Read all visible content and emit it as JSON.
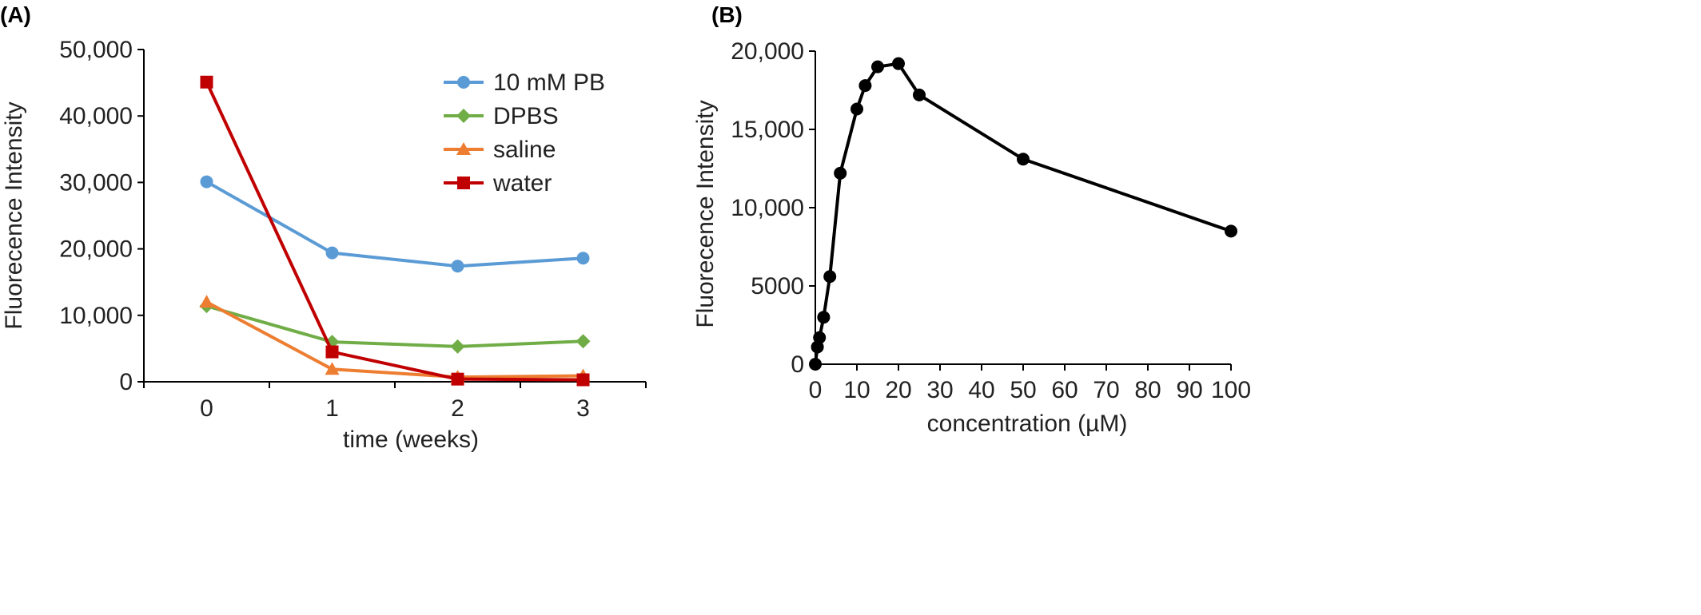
{
  "chart_data": [
    {
      "panel_label": "(A)",
      "type": "line",
      "xlabel": "time (weeks)",
      "ylabel": "Fluorecence Intensity",
      "x": [
        0,
        1,
        2,
        3
      ],
      "x_ticks": [
        "0",
        "1",
        "2",
        "3"
      ],
      "xlim": [
        -0.5,
        3.5
      ],
      "ylim": [
        0,
        50000
      ],
      "y_ticks": [
        "0",
        "10,000",
        "20,000",
        "30,000",
        "40,000",
        "50,000"
      ],
      "y_tick_values": [
        0,
        10000,
        20000,
        30000,
        40000,
        50000
      ],
      "grid": false,
      "legend_position": "top-right",
      "series": [
        {
          "name": "10 mM PB",
          "color": "#5b9bd5",
          "marker": "circle",
          "values": [
            30100,
            19400,
            17400,
            18600
          ]
        },
        {
          "name": "DPBS",
          "color": "#70ad47",
          "marker": "diamond",
          "values": [
            11400,
            6000,
            5300,
            6100
          ]
        },
        {
          "name": "saline",
          "color": "#ed7d31",
          "marker": "triangle",
          "values": [
            12000,
            1900,
            700,
            900
          ]
        },
        {
          "name": "water",
          "color": "#c00000",
          "marker": "square",
          "values": [
            45100,
            4500,
            400,
            300
          ]
        }
      ]
    },
    {
      "panel_label": "(B)",
      "type": "line",
      "xlabel": "concentration (µM)",
      "ylabel": "Fluorecence Intensity",
      "xlim": [
        0,
        100
      ],
      "x_ticks": [
        "0",
        "10",
        "20",
        "30",
        "40",
        "50",
        "60",
        "70",
        "80",
        "90",
        "100"
      ],
      "x_tick_values": [
        0,
        10,
        20,
        30,
        40,
        50,
        60,
        70,
        80,
        90,
        100
      ],
      "ylim": [
        0,
        20000
      ],
      "y_ticks": [
        "0",
        "5000",
        "10,000",
        "15,000",
        "20,000"
      ],
      "y_tick_values": [
        0,
        5000,
        10000,
        15000,
        20000
      ],
      "grid": false,
      "series": [
        {
          "color": "#000000",
          "marker": "circle",
          "x": [
            0,
            0.5,
            1,
            2,
            3.5,
            6,
            10,
            12,
            15,
            20,
            25,
            50,
            100
          ],
          "values": [
            0,
            1100,
            1700,
            3000,
            5600,
            12200,
            16300,
            17800,
            19000,
            19200,
            17200,
            13100,
            8500
          ]
        }
      ]
    }
  ]
}
